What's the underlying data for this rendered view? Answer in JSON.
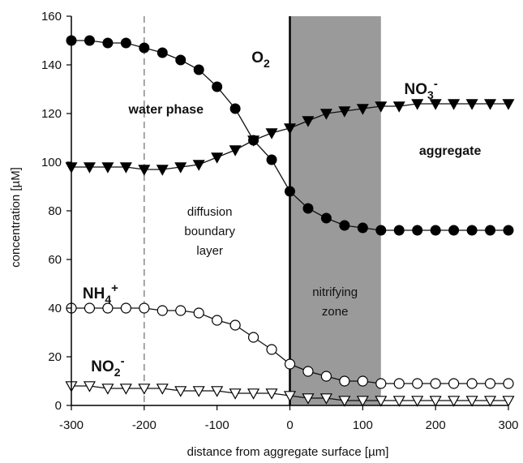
{
  "chart_data": {
    "type": "line",
    "xlabel": "distance from aggregate surface [µm]",
    "ylabel": "concentration [µM]",
    "xlim": [
      -300,
      300
    ],
    "ylim": [
      0,
      160
    ],
    "x_ticks": [
      -300,
      -200,
      -100,
      0,
      100,
      200,
      300
    ],
    "y_ticks": [
      0,
      20,
      40,
      60,
      80,
      100,
      120,
      140,
      160
    ],
    "grid": false,
    "shaded_region": {
      "x": [
        0,
        125
      ],
      "color": "#9a9a9a"
    },
    "reference_lines": [
      {
        "x": -200,
        "style": "dashed",
        "color": "#888888"
      },
      {
        "x": 0,
        "style": "solid",
        "color": "#000000"
      }
    ],
    "series": [
      {
        "name": "O2",
        "label_main": "O",
        "label_sub": "2",
        "label_sup": "",
        "marker": "filled-circle",
        "x": [
          -300,
          -275,
          -250,
          -225,
          -200,
          -175,
          -150,
          -125,
          -100,
          -75,
          -50,
          -25,
          0,
          25,
          50,
          75,
          100,
          125,
          150,
          175,
          200,
          225,
          250,
          275,
          300
        ],
        "values": [
          150,
          150,
          149,
          149,
          147,
          145,
          142,
          138,
          131,
          122,
          109,
          101,
          88,
          81,
          77,
          74,
          73,
          72,
          72,
          72,
          72,
          72,
          72,
          72,
          72
        ]
      },
      {
        "name": "NO3-",
        "label_main": "NO",
        "label_sub": "3",
        "label_sup": "-",
        "marker": "filled-triangle-down",
        "x": [
          -300,
          -275,
          -250,
          -225,
          -200,
          -175,
          -150,
          -125,
          -100,
          -75,
          -50,
          -25,
          0,
          25,
          50,
          75,
          100,
          125,
          150,
          175,
          200,
          225,
          250,
          275,
          300
        ],
        "values": [
          98,
          98,
          98,
          98,
          97,
          97,
          98,
          99,
          102,
          105,
          109,
          112,
          114,
          117,
          120,
          121,
          122,
          123,
          123,
          124,
          124,
          124,
          124,
          124,
          124
        ]
      },
      {
        "name": "NH4+",
        "label_main": "NH",
        "label_sub": "4",
        "label_sup": "+",
        "marker": "open-circle",
        "x": [
          -300,
          -275,
          -250,
          -225,
          -200,
          -175,
          -150,
          -125,
          -100,
          -75,
          -50,
          -25,
          0,
          25,
          50,
          75,
          100,
          125,
          150,
          175,
          200,
          225,
          250,
          275,
          300
        ],
        "values": [
          40,
          40,
          40,
          40,
          40,
          39,
          39,
          38,
          35,
          33,
          28,
          23,
          17,
          14,
          12,
          10,
          10,
          9,
          9,
          9,
          9,
          9,
          9,
          9,
          9
        ]
      },
      {
        "name": "NO2-",
        "label_main": "NO",
        "label_sub": "2",
        "label_sup": "-",
        "marker": "open-triangle-down",
        "x": [
          -300,
          -275,
          -250,
          -225,
          -200,
          -175,
          -150,
          -125,
          -100,
          -75,
          -50,
          -25,
          0,
          25,
          50,
          75,
          100,
          125,
          150,
          175,
          200,
          225,
          250,
          275,
          300
        ],
        "values": [
          8,
          8,
          7,
          7,
          7,
          7,
          6,
          6,
          6,
          5,
          5,
          5,
          4,
          3,
          3,
          2,
          2,
          2,
          2,
          2,
          2,
          2,
          2,
          2,
          2
        ]
      }
    ],
    "annotations": [
      {
        "text": "water phase",
        "x": -170,
        "y": 120,
        "bold": true
      },
      {
        "text": "aggregate",
        "x": 220,
        "y": 103,
        "bold": true
      },
      {
        "text": "diffusion",
        "x": -110,
        "y": 78,
        "bold": false
      },
      {
        "text": "boundary",
        "x": -110,
        "y": 70,
        "bold": false
      },
      {
        "text": "layer",
        "x": -110,
        "y": 62,
        "bold": false
      },
      {
        "text": "nitrifying",
        "x": 62,
        "y": 45,
        "bold": false
      },
      {
        "text": "zone",
        "x": 62,
        "y": 37,
        "bold": false
      }
    ]
  }
}
